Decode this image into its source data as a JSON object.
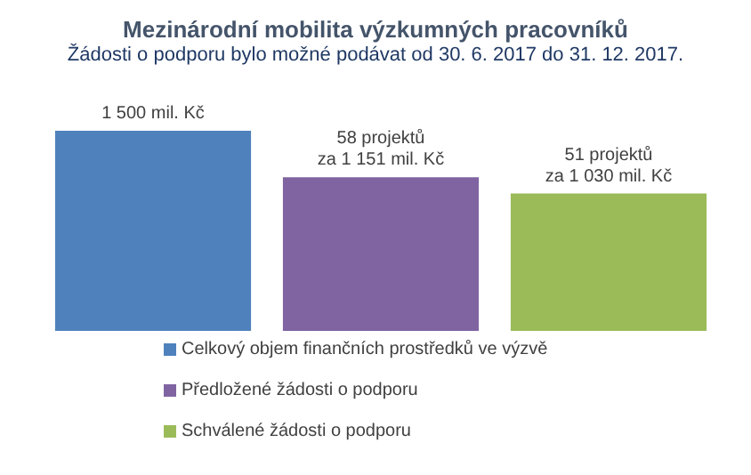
{
  "chart_data": {
    "type": "bar",
    "title": "Mezinárodní mobilita výzkumných pracovníků",
    "subtitle": "Žádosti o podporu bylo možné  podávat od 30. 6. 2017 do 31. 12. 2017.",
    "categories": [
      null
    ],
    "legend": "bottom",
    "series": [
      {
        "name": "Celkový objem finančních prostředků ve výzvě",
        "color": "#4f81bd",
        "values": [
          1500
        ],
        "value_labels": [
          "1 500 mil. Kč"
        ]
      },
      {
        "name": "Předložené žádosti o podporu",
        "color": "#8064a2",
        "values": [
          1151
        ],
        "value_labels": [
          "58 projektů\nza 1 151 mil. Kč"
        ]
      },
      {
        "name": "Schválené žádosti o podporu",
        "color": "#9bbb59",
        "values": [
          1030
        ],
        "value_labels": [
          "51 projektů\nza 1 030 mil. Kč"
        ]
      }
    ]
  }
}
